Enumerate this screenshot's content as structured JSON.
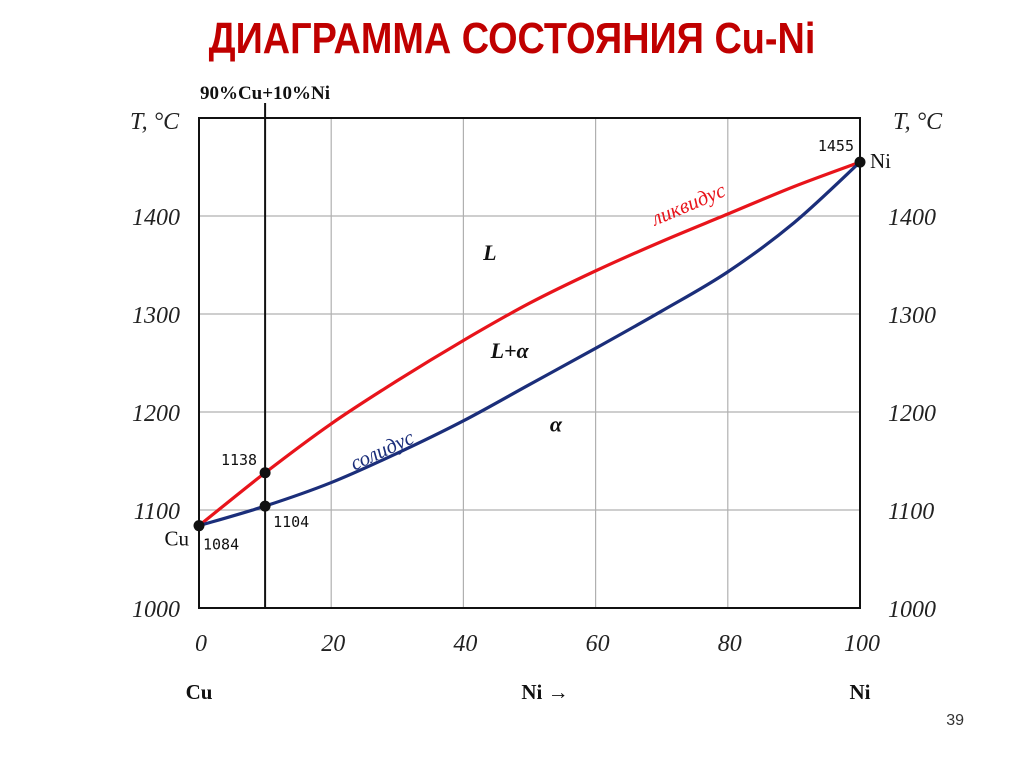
{
  "slide": {
    "title": "ДИАГРАММА СОСТОЯНИЯ Cu-Ni",
    "page_number": "39"
  },
  "chart_data": {
    "type": "line",
    "title": "ДИАГРАММА СОСТОЯНИЯ Cu-Ni",
    "xlabel": "Ni →",
    "ylabel": "T, °C",
    "y2label": "T, °C",
    "xlim": [
      0,
      100
    ],
    "ylim": [
      1000,
      1500
    ],
    "x_ticks": [
      "0",
      "20",
      "40",
      "60",
      "80",
      "100"
    ],
    "y_ticks": [
      "1000",
      "1100",
      "1200",
      "1300",
      "1400"
    ],
    "grid": true,
    "left_component": "Cu",
    "right_component": "Ni",
    "series": [
      {
        "name": "ликвидус",
        "color": "#e8141b",
        "points": [
          [
            0,
            1084
          ],
          [
            10,
            1138
          ],
          [
            20,
            1188
          ],
          [
            30,
            1232
          ],
          [
            40,
            1273
          ],
          [
            50,
            1311
          ],
          [
            60,
            1344
          ],
          [
            70,
            1374
          ],
          [
            80,
            1402
          ],
          [
            90,
            1430
          ],
          [
            100,
            1455
          ]
        ]
      },
      {
        "name": "солидус",
        "color": "#1b2e7a",
        "points": [
          [
            0,
            1084
          ],
          [
            10,
            1104
          ],
          [
            20,
            1128
          ],
          [
            30,
            1158
          ],
          [
            40,
            1191
          ],
          [
            50,
            1228
          ],
          [
            60,
            1265
          ],
          [
            70,
            1303
          ],
          [
            80,
            1343
          ],
          [
            90,
            1393
          ],
          [
            100,
            1455
          ]
        ]
      }
    ],
    "vertical_line": {
      "x": 10,
      "label": "90%Cu+10%Ni"
    },
    "points": [
      {
        "x": 0,
        "y": 1084,
        "label": "1084",
        "element": "Cu"
      },
      {
        "x": 10,
        "y": 1138,
        "label": "1138"
      },
      {
        "x": 10,
        "y": 1104,
        "label": "1104"
      },
      {
        "x": 100,
        "y": 1455,
        "label": "1455",
        "element": "Ni"
      }
    ],
    "regions": [
      {
        "label": "L",
        "x": 44,
        "y": 1355
      },
      {
        "label": "L+α",
        "x": 47,
        "y": 1255
      },
      {
        "label": "α",
        "x": 54,
        "y": 1180
      }
    ],
    "bottom_labels": {
      "left": "Cu",
      "middle": "Ni →",
      "right": "Ni"
    }
  }
}
